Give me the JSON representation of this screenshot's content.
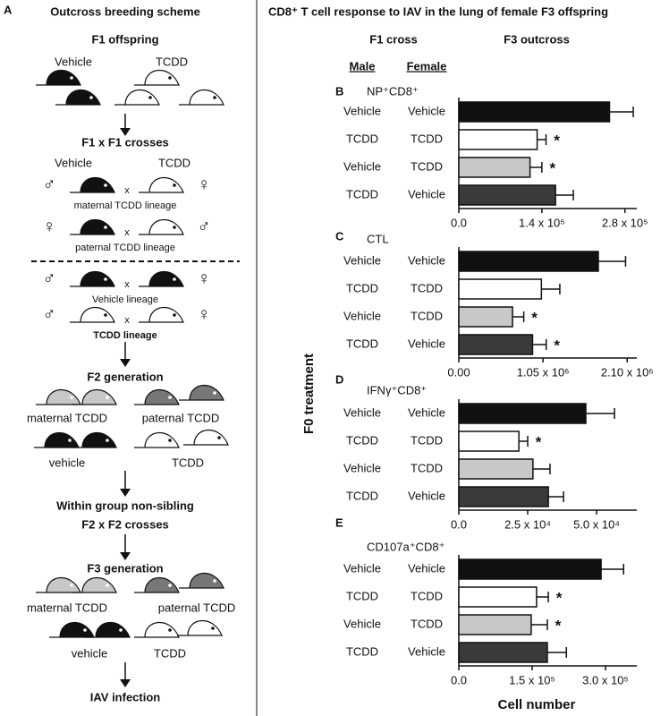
{
  "panel_a": {
    "letter": "A",
    "title": "Outcross breeding scheme",
    "f1": {
      "title": "F1 offspring",
      "vehicle": "Vehicle",
      "tcdd": "TCDD"
    },
    "f1_cross": {
      "title": "F1 x F1 crosses",
      "vehicle": "Vehicle",
      "tcdd": "TCDD",
      "rows": [
        {
          "left": "♂",
          "x": "x",
          "right": "♀",
          "label": "maternal TCDD lineage"
        },
        {
          "left": "♀",
          "x": "x",
          "right": "♂",
          "label": "paternal TCDD lineage"
        },
        {
          "left": "♂",
          "x": "x",
          "right": "♀",
          "label": "Vehicle lineage"
        },
        {
          "left": "♂",
          "x": "x",
          "right": "♀",
          "label": "TCDD lineage"
        }
      ]
    },
    "f2": {
      "title": "F2 generation",
      "labels": [
        "maternal TCDD",
        "paternal TCDD",
        "vehicle",
        "TCDD"
      ]
    },
    "f2_cross": {
      "lines": [
        "Within group non-sibling",
        "F2 x F2 crosses"
      ]
    },
    "f3": {
      "title": "F3 generation",
      "labels": [
        "maternal TCDD",
        "paternal TCDD",
        "vehicle",
        "TCDD"
      ]
    },
    "infection": "IAV infection"
  },
  "panel_right": {
    "title": "CD8⁺ T cell response to IAV in the lung of female F3 offspring",
    "f1_cross": "F1 cross",
    "f3_outcross": "F3 outcross",
    "male": "Male",
    "female": "Female",
    "y_axis_label": "F0 treatment",
    "x_axis_label": "Cell number"
  },
  "chart_data": [
    {
      "type": "bar",
      "orientation": "horizontal",
      "panel": "B",
      "title": "NP⁺CD8⁺",
      "categories": [
        "Vehicle",
        "TCDD",
        "Vehicle",
        "TCDD"
      ],
      "categories_female": [
        "Vehicle",
        "TCDD",
        "TCDD",
        "Vehicle"
      ],
      "values": [
        254000,
        132000,
        120000,
        163000
      ],
      "errors": [
        40000,
        15000,
        20000,
        30000
      ],
      "colors": [
        "#111111",
        "#ffffff",
        "#c8c8c8",
        "#3a3a3a"
      ],
      "marks": [
        null,
        "*",
        "*",
        null
      ],
      "xlim": [
        0,
        300000
      ],
      "xticks": [
        {
          "value": 0,
          "label": "0.0"
        },
        {
          "value": 140000,
          "label": "1.4 x 10⁵"
        },
        {
          "value": 280000,
          "label": "2.8 x 10⁵"
        }
      ]
    },
    {
      "type": "bar",
      "orientation": "horizontal",
      "panel": "C",
      "title": "CTL",
      "categories": [
        "Vehicle",
        "TCDD",
        "Vehicle",
        "TCDD"
      ],
      "categories_female": [
        "Vehicle",
        "TCDD",
        "TCDD",
        "Vehicle"
      ],
      "values": [
        1740000,
        1030000,
        670000,
        920000
      ],
      "errors": [
        340000,
        230000,
        140000,
        170000
      ],
      "colors": [
        "#111111",
        "#ffffff",
        "#c8c8c8",
        "#3a3a3a"
      ],
      "marks": [
        null,
        null,
        "*",
        "*"
      ],
      "xlim": [
        0,
        2220000
      ],
      "xticks": [
        {
          "value": 0,
          "label": "0.00"
        },
        {
          "value": 1050000,
          "label": "1.05 x 10⁶"
        },
        {
          "value": 2100000,
          "label": "2.10 x 10⁶"
        }
      ]
    },
    {
      "type": "bar",
      "orientation": "horizontal",
      "panel": "D",
      "title": "IFNγ⁺CD8⁺",
      "categories": [
        "Vehicle",
        "TCDD",
        "Vehicle",
        "TCDD"
      ],
      "categories_female": [
        "Vehicle",
        "TCDD",
        "TCDD",
        "Vehicle"
      ],
      "values": [
        46100,
        21800,
        26900,
        32500
      ],
      "errors": [
        10400,
        3200,
        6200,
        5500
      ],
      "colors": [
        "#111111",
        "#ffffff",
        "#c8c8c8",
        "#3a3a3a"
      ],
      "marks": [
        null,
        "*",
        null,
        null
      ],
      "xlim": [
        0,
        64600
      ],
      "xticks": [
        {
          "value": 0,
          "label": "0.0"
        },
        {
          "value": 25000,
          "label": "2.5 x 10⁴"
        },
        {
          "value": 50000,
          "label": "5.0 x 10⁴"
        }
      ]
    },
    {
      "type": "bar",
      "orientation": "horizontal",
      "panel": "E",
      "title": "CD107a⁺CD8⁺",
      "categories": [
        "Vehicle",
        "TCDD",
        "Vehicle",
        "TCDD"
      ],
      "categories_female": [
        "Vehicle",
        "TCDD",
        "TCDD",
        "Vehicle"
      ],
      "values": [
        291000,
        159000,
        148000,
        181000
      ],
      "errors": [
        46000,
        24000,
        33000,
        39000
      ],
      "colors": [
        "#111111",
        "#ffffff",
        "#c8c8c8",
        "#3a3a3a"
      ],
      "marks": [
        null,
        "*",
        "*",
        null
      ],
      "xlim": [
        0,
        364000
      ],
      "xticks": [
        {
          "value": 0,
          "label": "0.0"
        },
        {
          "value": 150000,
          "label": "1.5 x 10⁵"
        },
        {
          "value": 300000,
          "label": "3.0 x 10⁵"
        }
      ]
    }
  ]
}
